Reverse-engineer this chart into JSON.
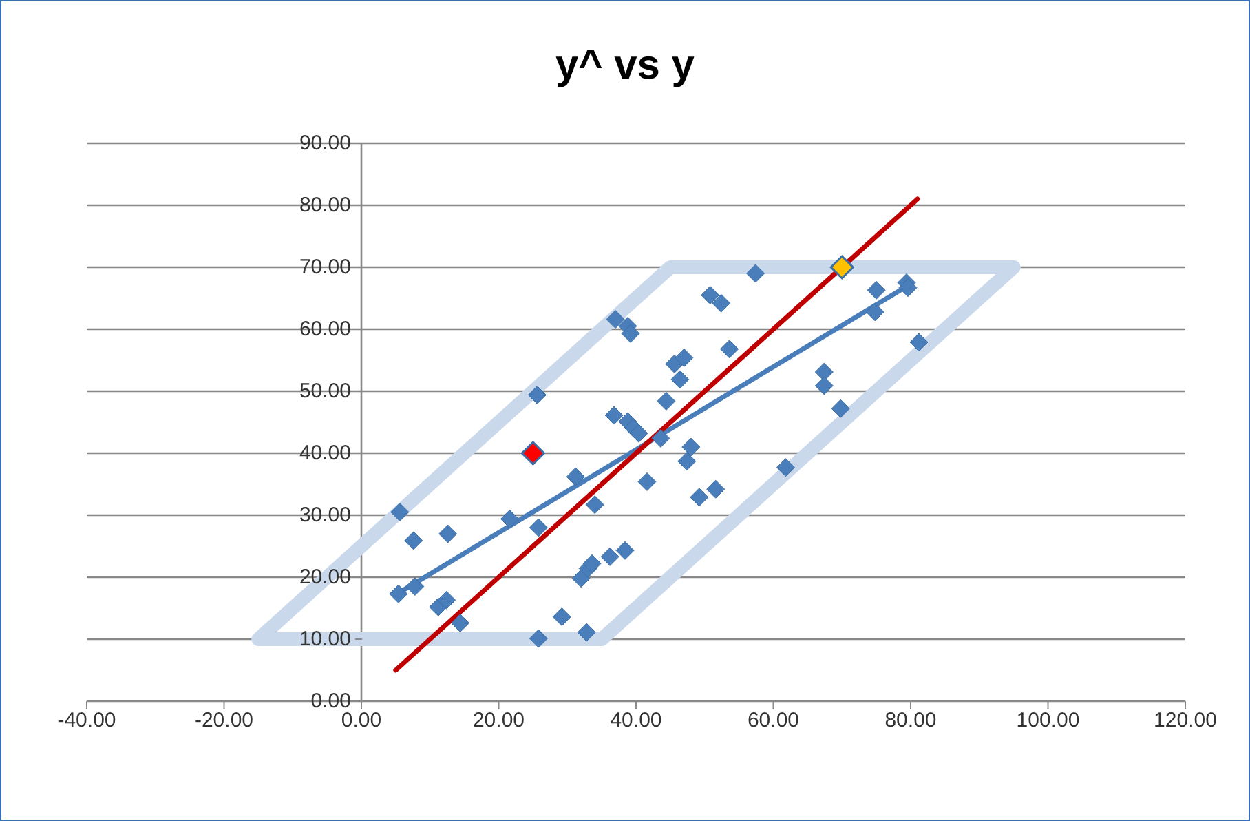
{
  "chart_data": {
    "type": "scatter",
    "title": "y^ vs y",
    "marker": "diamond",
    "grid": "y",
    "xlim": [
      -40,
      120
    ],
    "xticks": [
      {
        "value": -40,
        "label": "-40.00"
      },
      {
        "value": -20,
        "label": "-20.00"
      },
      {
        "value": 0,
        "label": "0.00"
      },
      {
        "value": 20,
        "label": "20.00"
      },
      {
        "value": 40,
        "label": "40.00"
      },
      {
        "value": 60,
        "label": "60.00"
      },
      {
        "value": 80,
        "label": "80.00"
      },
      {
        "value": 100,
        "label": "100.00"
      },
      {
        "value": 120,
        "label": "120.00"
      }
    ],
    "ylim": [
      0,
      90
    ],
    "yticks": [
      {
        "value": 0,
        "label": "0.00"
      },
      {
        "value": 10,
        "label": "10.00"
      },
      {
        "value": 20,
        "label": "20.00"
      },
      {
        "value": 30,
        "label": "30.00"
      },
      {
        "value": 40,
        "label": "40.00"
      },
      {
        "value": 50,
        "label": "50.00"
      },
      {
        "value": 60,
        "label": "60.00"
      },
      {
        "value": 70,
        "label": "70.00"
      },
      {
        "value": 80,
        "label": "80.00"
      },
      {
        "value": 90,
        "label": "90.00"
      }
    ],
    "series": [
      {
        "type": "line",
        "marker": "none",
        "color": "#cad8ec",
        "x": [
          -15,
          35,
          95
        ],
        "values": [
          10,
          10,
          70
        ]
      },
      {
        "type": "line",
        "marker": "none",
        "color": "#cad8ec",
        "x": [
          -15,
          45,
          95
        ],
        "values": [
          10,
          70,
          70
        ]
      },
      {
        "type": "scatter",
        "color": "#4a7ebb",
        "x": [
          5.6,
          5.4,
          7.6,
          7.8,
          12.6,
          11.2,
          12.4,
          14.4,
          21.6,
          25.6,
          25.8,
          25.8,
          31.2,
          29.2,
          32.8,
          32,
          33,
          33.6,
          34,
          36.2,
          38.4,
          36.8,
          37,
          38.8,
          39.2,
          38.8,
          39.6,
          40.4,
          41.6,
          43.6,
          44.4,
          45.6,
          47,
          46.4,
          48,
          47.4,
          49.2,
          51.6,
          50.8,
          52.4,
          53.6,
          57.4,
          61.8,
          67.4,
          67.4,
          69.8,
          75,
          74.8,
          79.4,
          79.6,
          81.2
        ],
        "values": [
          30.5,
          17.3,
          25.9,
          18.5,
          27,
          15.2,
          16.3,
          12.6,
          29.4,
          49.4,
          28,
          10.1,
          36.2,
          13.6,
          11.1,
          19.8,
          21.4,
          22.2,
          31.7,
          23.3,
          24.3,
          46.1,
          61.6,
          60.5,
          59.3,
          45.1,
          44.1,
          43.2,
          35.4,
          42.4,
          48.4,
          54.4,
          55.4,
          51.9,
          41,
          38.7,
          32.9,
          34.2,
          65.5,
          64.2,
          56.8,
          69,
          37.7,
          53.1,
          50.9,
          47.2,
          66.3,
          62.8,
          67.5,
          66.7,
          57.9
        ]
      },
      {
        "type": "line",
        "marker": "none",
        "color": "#4a7ebb",
        "x": [
          5.5,
          80
        ],
        "values": [
          17.5,
          67.3
        ]
      },
      {
        "type": "line",
        "marker": "none",
        "color": "#c00000",
        "x": [
          5,
          81
        ],
        "values": [
          5,
          81
        ]
      },
      {
        "type": "scatter",
        "color": "#ff0000",
        "x": [
          25
        ],
        "values": [
          40
        ]
      },
      {
        "type": "scatter",
        "color": "#ffc000",
        "x": [
          70
        ],
        "values": [
          70
        ]
      }
    ]
  }
}
